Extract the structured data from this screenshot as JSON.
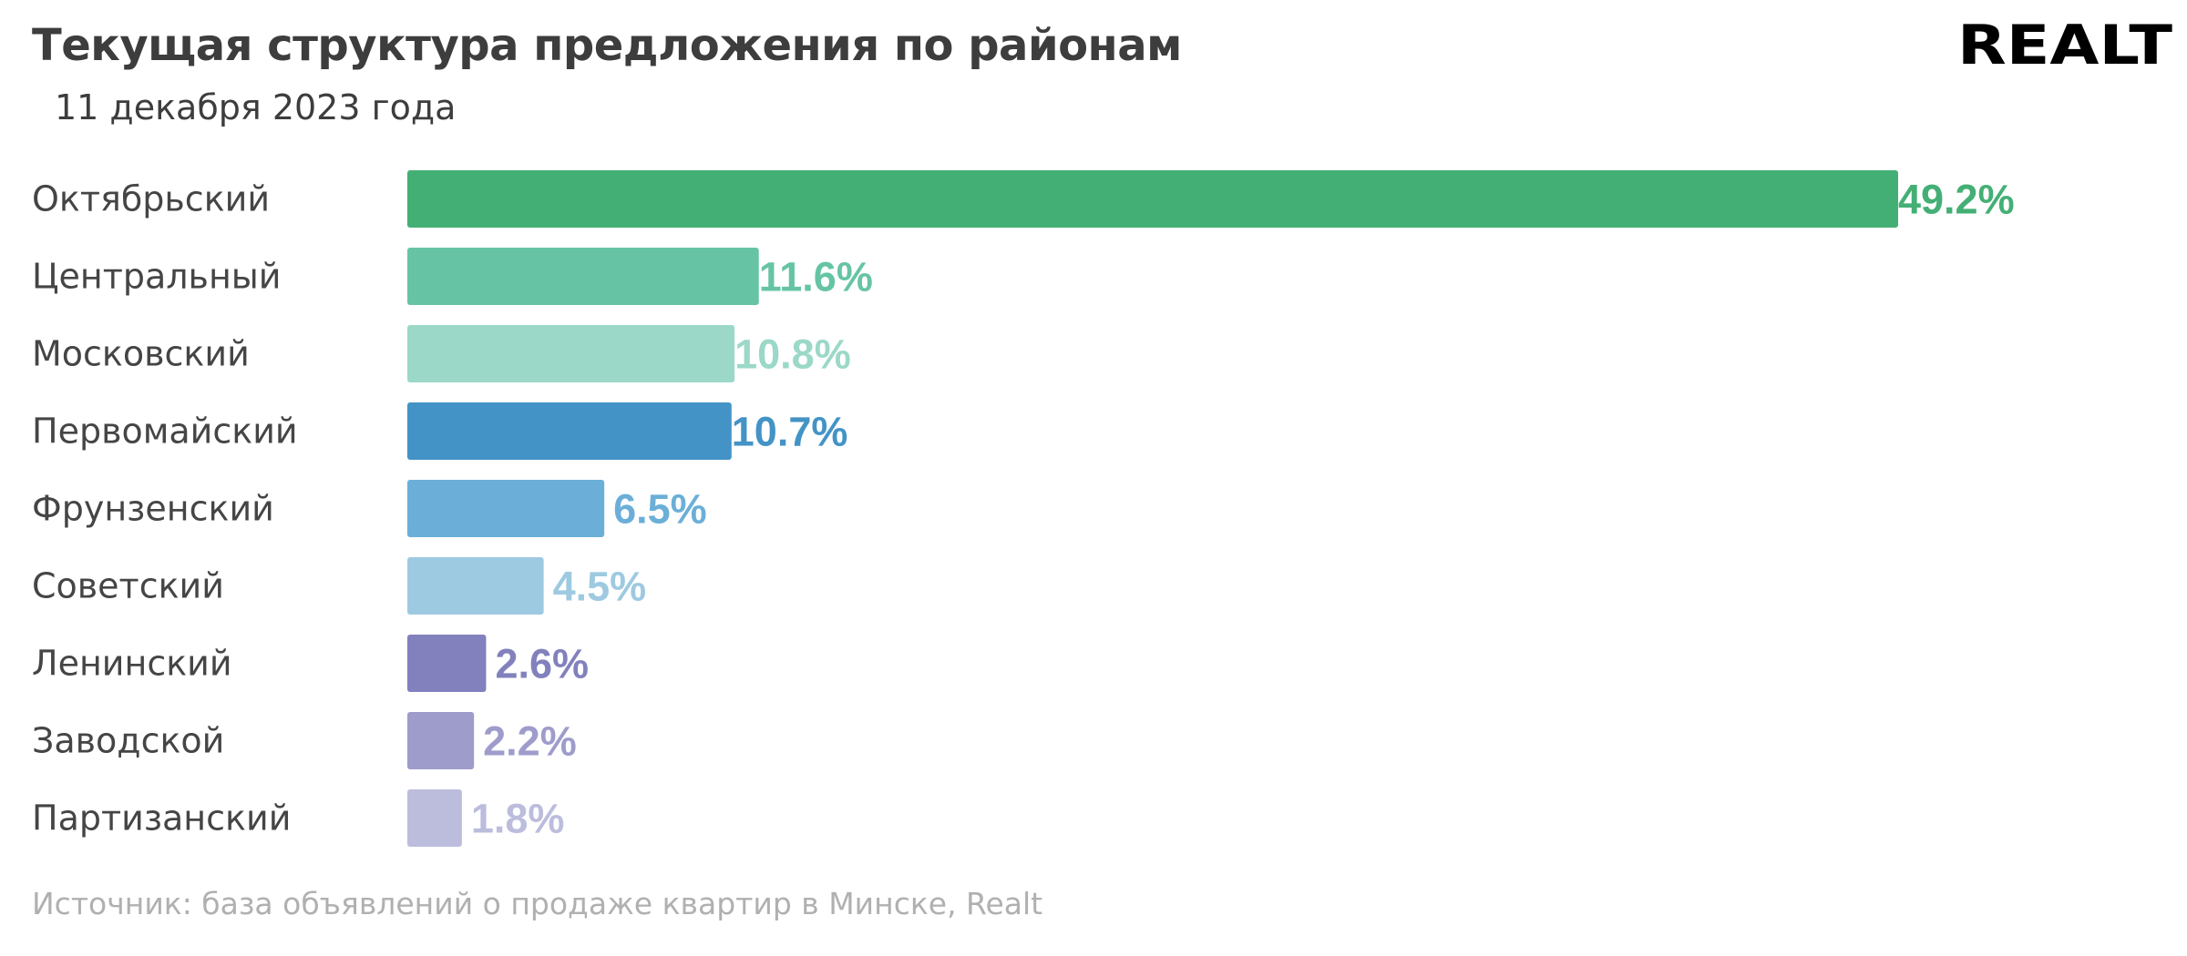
{
  "header": {
    "title": "Текущая структура предложения по районам",
    "subtitle": "11 декабря 2023 года",
    "logo_text": "REALT"
  },
  "footer": {
    "source": "Источник: база объявлений о продаже квартир в Минске, Realt"
  },
  "chart_data": {
    "type": "bar",
    "orientation": "horizontal",
    "title": "Текущая структура предложения по районам",
    "subtitle": "11 декабря 2023 года",
    "xlabel": "",
    "ylabel": "",
    "unit": "%",
    "xlim": [
      0,
      49.2
    ],
    "grid": false,
    "categories": [
      "Октябрьский",
      "Центральный",
      "Московский",
      "Первомайский",
      "Фрунзенский",
      "Советский",
      "Ленинский",
      "Заводской",
      "Партизанский"
    ],
    "values": [
      49.2,
      11.6,
      10.8,
      10.7,
      6.5,
      4.5,
      2.6,
      2.2,
      1.8
    ],
    "labels": [
      "49.2%",
      "11.6%",
      "10.8%",
      "10.7%",
      "6.5%",
      "4.5%",
      "2.6%",
      "2.2%",
      "1.8%"
    ],
    "colors": [
      "#44AF75",
      "#66C4A5",
      "#9BD8C8",
      "#4393C6",
      "#6BAFD8",
      "#9ECAE1",
      "#8281BD",
      "#9E9CCB",
      "#BCBDDD"
    ]
  }
}
